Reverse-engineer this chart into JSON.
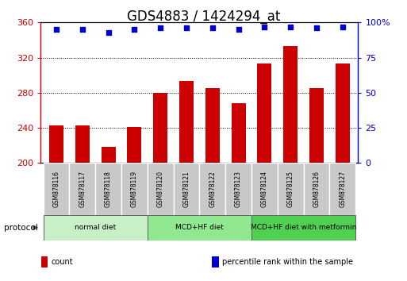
{
  "title": "GDS4883 / 1424294_at",
  "samples": [
    "GSM878116",
    "GSM878117",
    "GSM878118",
    "GSM878119",
    "GSM878120",
    "GSM878121",
    "GSM878122",
    "GSM878123",
    "GSM878124",
    "GSM878125",
    "GSM878126",
    "GSM878127"
  ],
  "counts": [
    243,
    243,
    218,
    241,
    280,
    293,
    285,
    268,
    313,
    333,
    285,
    313
  ],
  "percentile_ranks": [
    95,
    95,
    93,
    95,
    96,
    96,
    96,
    95,
    97,
    97,
    96,
    97
  ],
  "bar_color": "#cc0000",
  "dot_color": "#0000cc",
  "ylim_left": [
    200,
    360
  ],
  "ylim_right": [
    0,
    100
  ],
  "yticks_left": [
    200,
    240,
    280,
    320,
    360
  ],
  "yticks_right": [
    0,
    25,
    50,
    75,
    100
  ],
  "groups": [
    {
      "label": "normal diet",
      "indices": [
        0,
        1,
        2,
        3
      ],
      "color": "#c8f0c8"
    },
    {
      "label": "MCD+HF diet",
      "indices": [
        4,
        5,
        6,
        7
      ],
      "color": "#90e890"
    },
    {
      "label": "MCD+HF diet with metformin",
      "indices": [
        8,
        9,
        10,
        11
      ],
      "color": "#50d050"
    }
  ],
  "legend_items": [
    {
      "label": "count",
      "color": "#cc0000"
    },
    {
      "label": "percentile rank within the sample",
      "color": "#0000cc"
    }
  ],
  "protocol_label": "protocol",
  "background_color": "#ffffff",
  "plot_bg_color": "#ffffff",
  "tick_label_bg": "#c8c8c8",
  "title_fontsize": 12,
  "tick_fontsize": 8,
  "label_fontsize": 7
}
